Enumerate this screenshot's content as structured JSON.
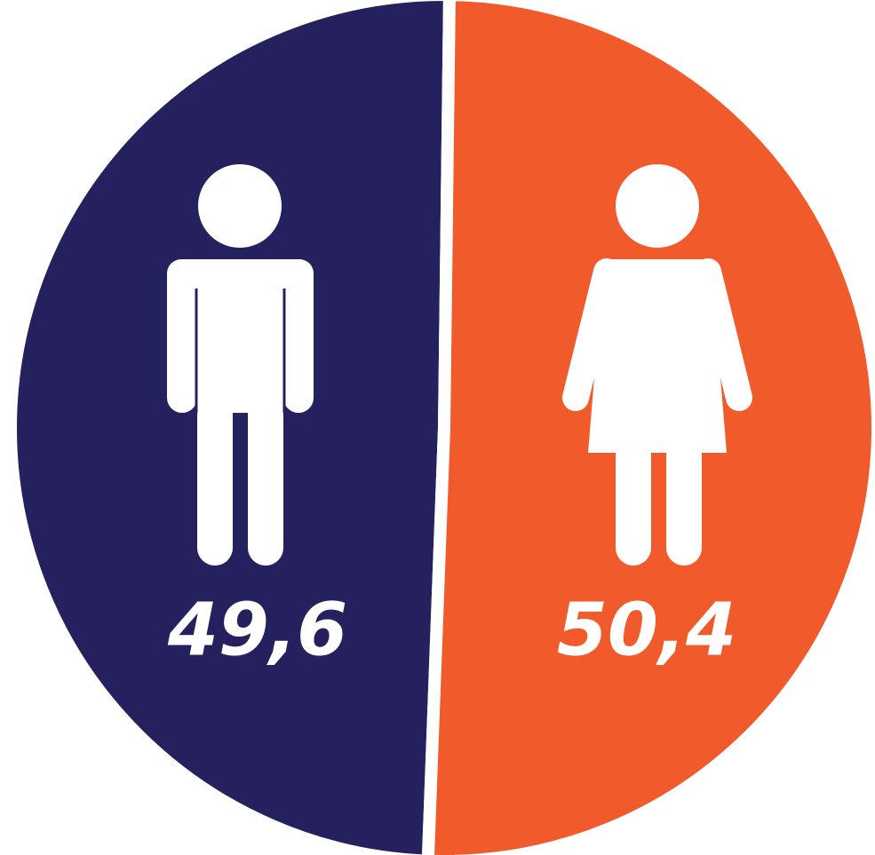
{
  "chart_data": {
    "type": "pie",
    "values": [
      49.6,
      50.4
    ],
    "value_labels": [
      "49,6",
      "50,4"
    ],
    "colors": [
      "#25215f",
      "#f15a2b"
    ]
  }
}
